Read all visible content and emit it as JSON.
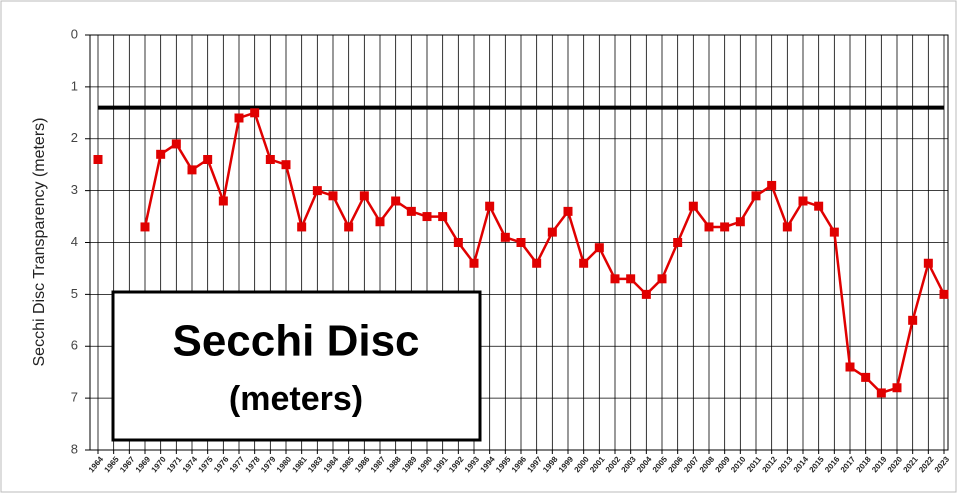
{
  "chart_data": {
    "type": "line",
    "y_label": "Secchi Disc Transparency (meters)",
    "annotations": [
      "Secchi Disc",
      "(meters)"
    ],
    "categories": [
      "1964",
      "1965",
      "1967",
      "1969",
      "1970",
      "1971",
      "1974",
      "1975",
      "1976",
      "1977",
      "1978",
      "1979",
      "1980",
      "1981",
      "1983",
      "1984",
      "1985",
      "1986",
      "1987",
      "1988",
      "1989",
      "1990",
      "1991",
      "1992",
      "1993",
      "1994",
      "1995",
      "1996",
      "1997",
      "1998",
      "1999",
      "2000",
      "2001",
      "2002",
      "2003",
      "2004",
      "2005",
      "2006",
      "2007",
      "2008",
      "2009",
      "2010",
      "2011",
      "2012",
      "2013",
      "2014",
      "2015",
      "2016",
      "2017",
      "2018",
      "2019",
      "2020",
      "2021",
      "2022",
      "2023"
    ],
    "series": [
      {
        "name": "Secchi Disc",
        "color": "#e00000",
        "values": [
          2.4,
          null,
          null,
          3.7,
          2.3,
          2.1,
          2.6,
          2.4,
          3.2,
          1.6,
          1.5,
          2.4,
          2.5,
          3.7,
          3.0,
          3.1,
          3.7,
          3.1,
          3.6,
          3.2,
          3.4,
          3.5,
          3.5,
          4.0,
          4.4,
          3.3,
          3.9,
          4.0,
          4.4,
          3.8,
          3.4,
          4.4,
          4.1,
          4.7,
          4.7,
          5.0,
          4.7,
          4.0,
          3.3,
          3.7,
          3.7,
          3.6,
          3.1,
          2.9,
          3.7,
          3.2,
          3.3,
          3.8,
          6.4,
          6.6,
          6.9,
          6.8,
          5.5,
          4.4,
          5.0
        ]
      }
    ],
    "reference_line": 1.4,
    "reference_color": "#000000",
    "ylim": [
      0,
      8
    ],
    "yticks": [
      0,
      1,
      2,
      3,
      4,
      5,
      6,
      7,
      8
    ],
    "y_inverted": true,
    "grid": true
  }
}
